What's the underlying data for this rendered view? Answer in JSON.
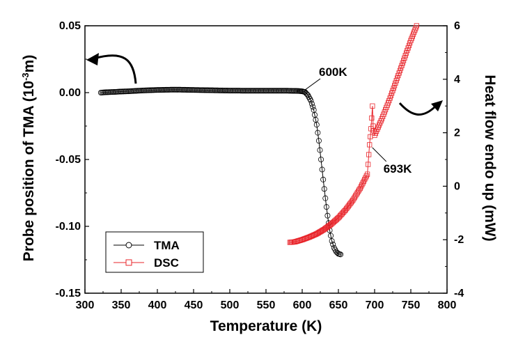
{
  "chart_data": {
    "type": "scatter",
    "xlabel": "Temperature (K)",
    "ylabel_left": {
      "prefix": "Probe position of TMA (10",
      "sup": "-3",
      "suffix": "m)"
    },
    "ylabel_right": "Heat flow endo up (mW)",
    "xlim": [
      300,
      800
    ],
    "ylim_left": [
      -0.15,
      0.05
    ],
    "ylim_right": [
      -4,
      6
    ],
    "x_ticks": [
      "300",
      "350",
      "400",
      "450",
      "500",
      "550",
      "600",
      "650",
      "700",
      "750",
      "800"
    ],
    "y_left_ticks": [
      "-0.15",
      "-0.10",
      "-0.05",
      "0.00",
      "0.05"
    ],
    "y_right_ticks": [
      "-4",
      "-2",
      "0",
      "2",
      "4",
      "6"
    ],
    "grid": false,
    "legend_position": "bottom-left",
    "series": [
      {
        "name": "TMA",
        "axis": "left",
        "color": "#000000",
        "marker": "circle",
        "x": [
          322,
          330,
          340,
          350,
          360,
          370,
          380,
          390,
          400,
          410,
          420,
          430,
          440,
          450,
          460,
          470,
          480,
          490,
          500,
          510,
          520,
          530,
          540,
          550,
          560,
          570,
          580,
          590,
          596,
          600,
          604,
          608,
          612,
          616,
          620,
          623,
          626,
          629,
          632,
          635,
          638,
          641,
          644,
          647,
          650,
          653
        ],
        "y": [
          0.0,
          0.0003,
          0.0005,
          0.0008,
          0.001,
          0.0013,
          0.0016,
          0.0018,
          0.002,
          0.0021,
          0.0022,
          0.0022,
          0.0021,
          0.002,
          0.0019,
          0.0018,
          0.0017,
          0.0016,
          0.0015,
          0.0015,
          0.0014,
          0.0014,
          0.0014,
          0.0014,
          0.0014,
          0.0014,
          0.0014,
          0.0013,
          0.0012,
          0.001,
          0.0004,
          -0.002,
          -0.006,
          -0.013,
          -0.024,
          -0.036,
          -0.05,
          -0.065,
          -0.079,
          -0.092,
          -0.103,
          -0.111,
          -0.116,
          -0.119,
          -0.1205,
          -0.121
        ]
      },
      {
        "name": "DSC",
        "axis": "right",
        "color": "#e8242a",
        "marker": "square",
        "x": [
          583,
          590,
          600,
          610,
          620,
          630,
          640,
          650,
          660,
          670,
          680,
          690,
          693,
          695,
          696,
          697,
          698,
          700,
          710,
          720,
          730,
          740,
          750,
          758
        ],
        "y": [
          -2.1,
          -2.08,
          -2.0,
          -1.9,
          -1.78,
          -1.62,
          -1.42,
          -1.18,
          -0.88,
          -0.52,
          -0.08,
          0.45,
          1.55,
          2.15,
          2.55,
          3.0,
          2.25,
          1.9,
          2.52,
          3.2,
          3.95,
          4.7,
          5.45,
          6.0
        ]
      }
    ],
    "annotations": [
      {
        "text": "600K",
        "x": 600,
        "y": 0.001,
        "axis": "left"
      },
      {
        "text": "693K",
        "x": 693,
        "y": 1.55,
        "axis": "right"
      }
    ]
  }
}
